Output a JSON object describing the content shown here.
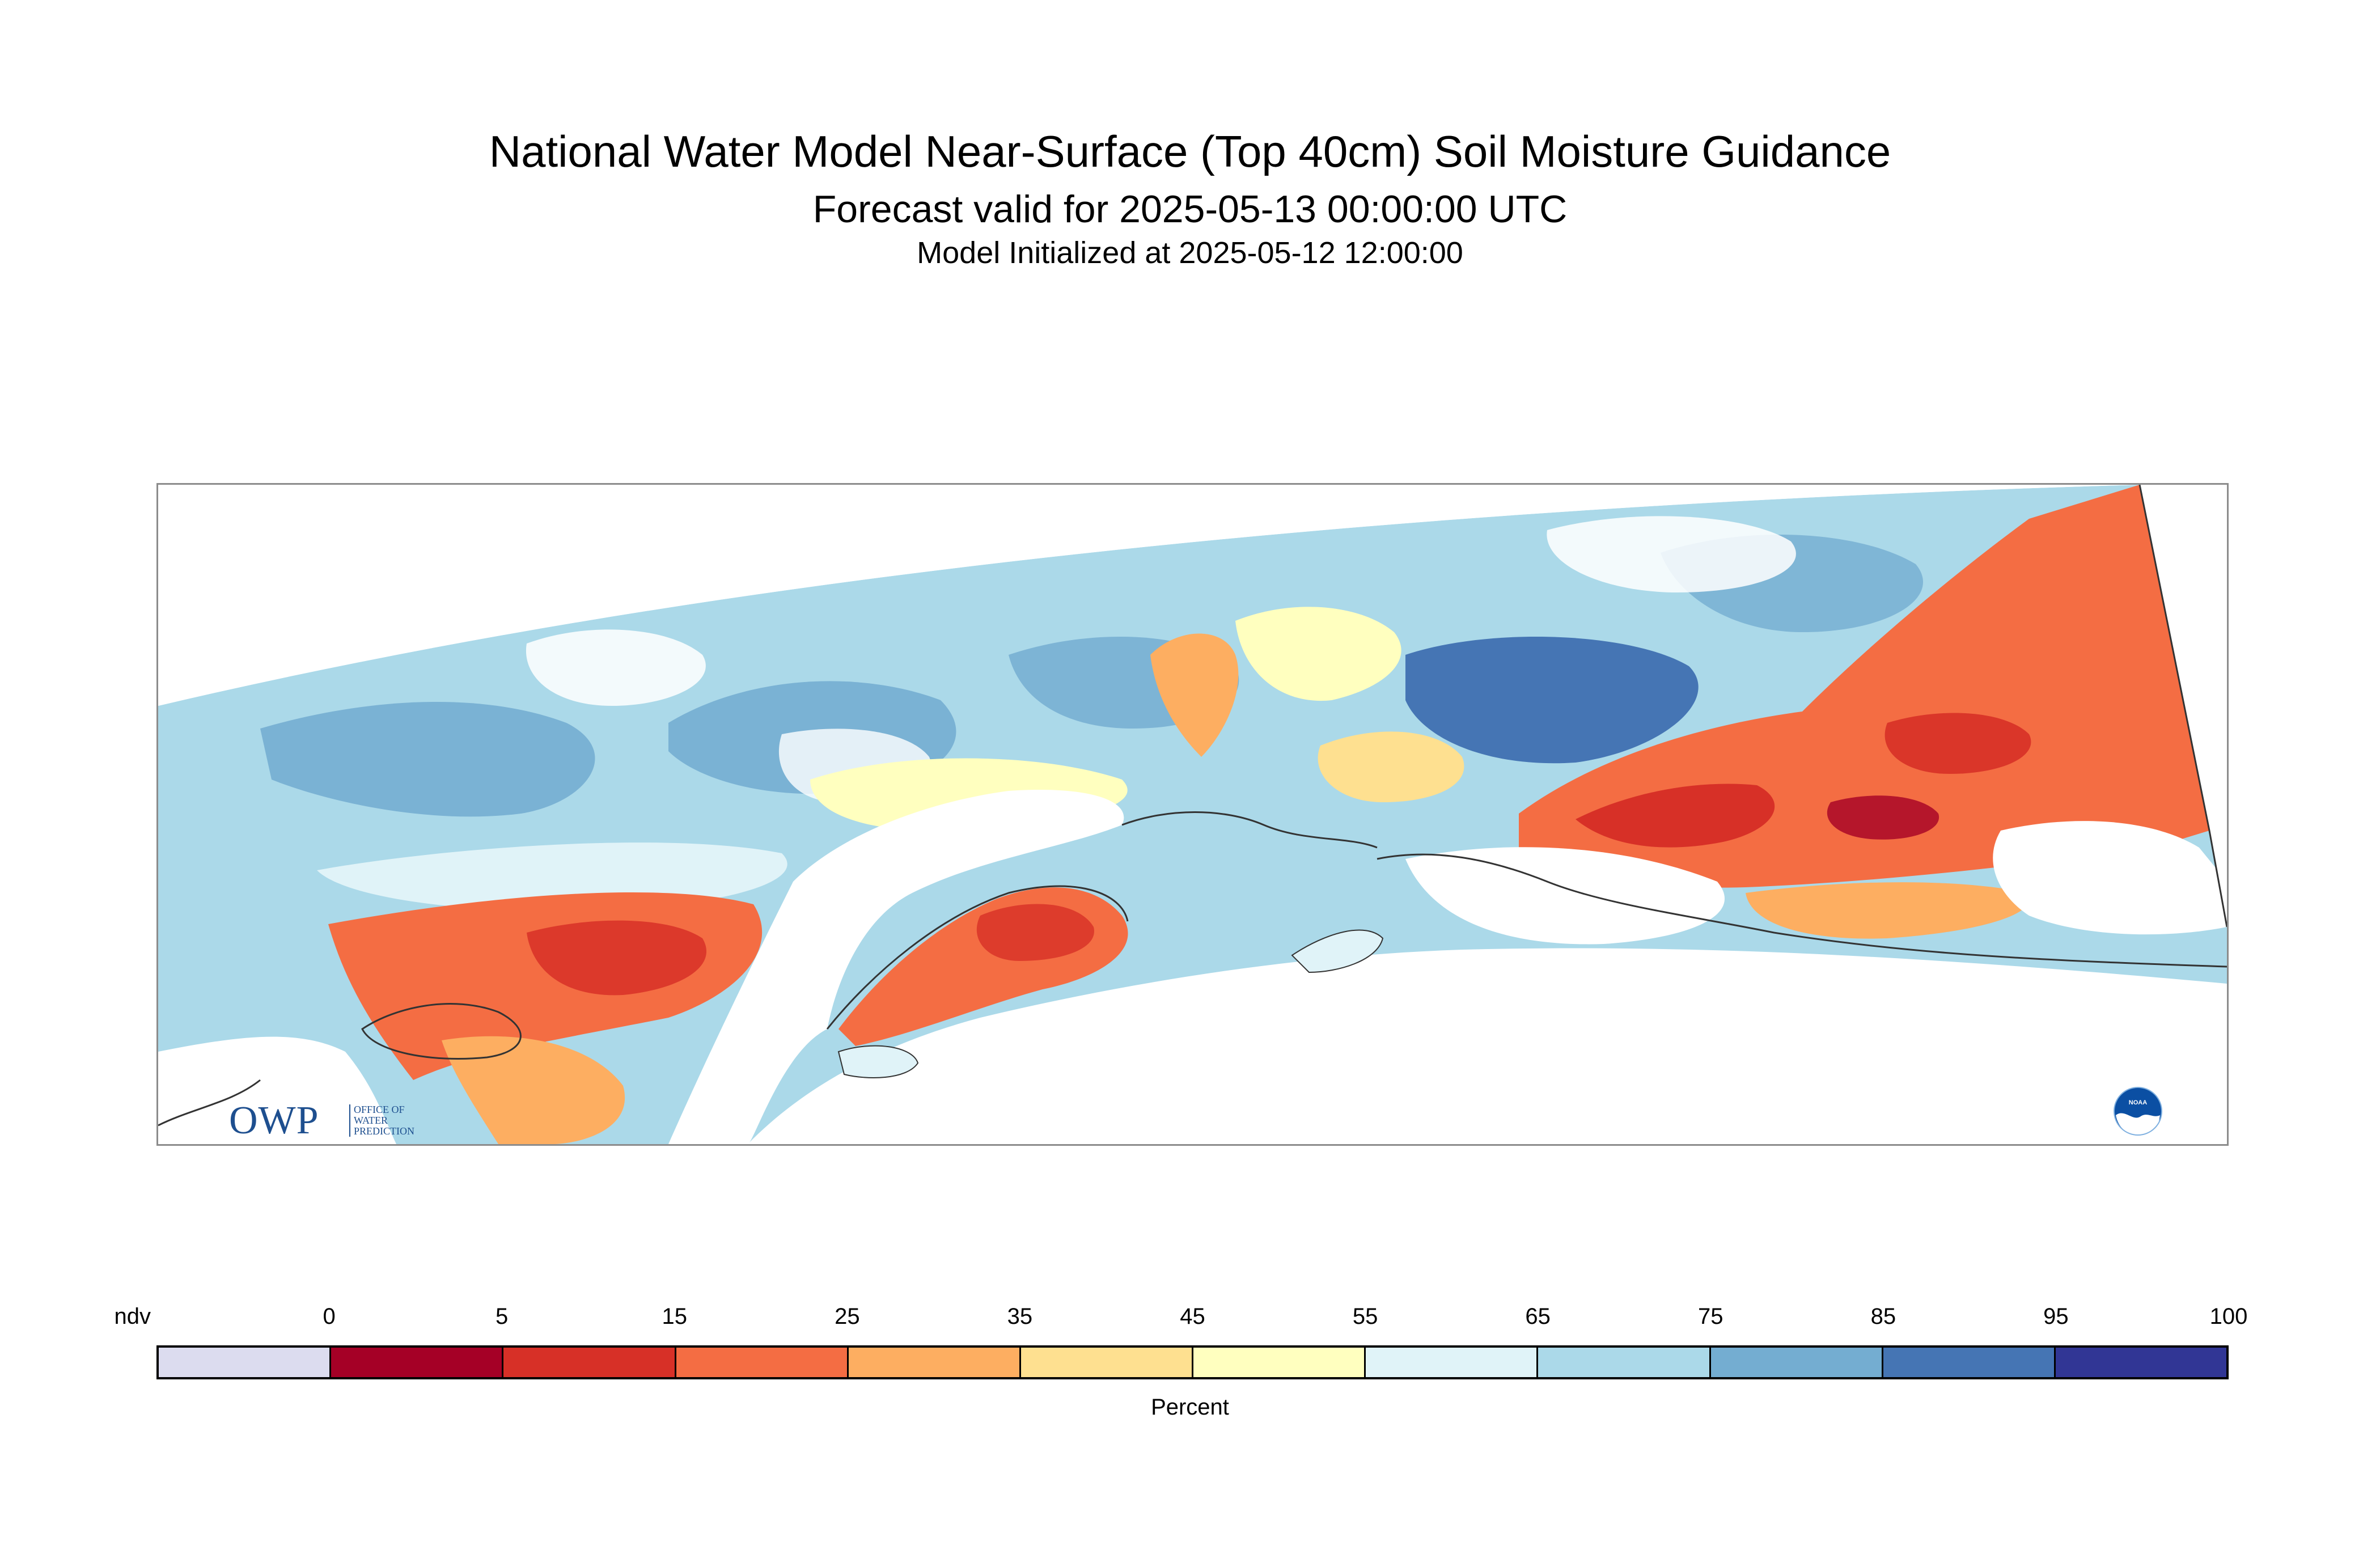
{
  "title": "National Water Model Near-Surface (Top 40cm) Soil Moisture Guidance",
  "subtitle": "Forecast valid for 2025-05-13 00:00:00 UTC",
  "init_line": "Model Initialized at 2025-05-12 12:00:00",
  "logos": {
    "owp": {
      "mark": "OWP",
      "lines": [
        "OFFICE OF",
        "WATER",
        "PREDICTION"
      ]
    },
    "noaa": {
      "mark": "NOAA"
    }
  },
  "legend": {
    "units": "Percent",
    "labels": [
      "ndv",
      "0",
      "5",
      "15",
      "25",
      "35",
      "45",
      "55",
      "65",
      "75",
      "85",
      "95",
      "100"
    ],
    "bins": [
      {
        "range": "ndv",
        "color": "#dcdcef"
      },
      {
        "range": "0-5",
        "color": "#a50026"
      },
      {
        "range": "5-15",
        "color": "#d73027"
      },
      {
        "range": "15-25",
        "color": "#f46d43"
      },
      {
        "range": "25-35",
        "color": "#fdae61"
      },
      {
        "range": "35-45",
        "color": "#fee090"
      },
      {
        "range": "45-55",
        "color": "#ffffbf"
      },
      {
        "range": "55-65",
        "color": "#e0f3f8"
      },
      {
        "range": "65-75",
        "color": "#abd9e9"
      },
      {
        "range": "75-85",
        "color": "#74add1"
      },
      {
        "range": "85-95",
        "color": "#4575b4"
      },
      {
        "range": "95-100",
        "color": "#313695"
      }
    ]
  }
}
